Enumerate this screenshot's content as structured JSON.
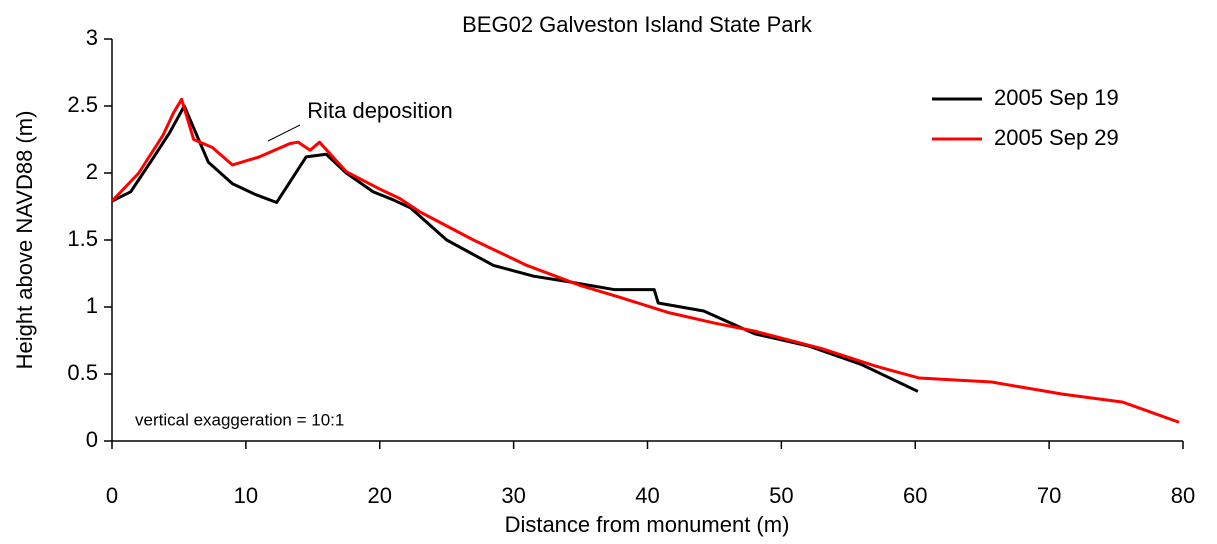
{
  "chart_data": {
    "type": "line",
    "title": "BEG02 Galveston Island State Park",
    "x_label": "Distance from monument (m)",
    "y_label": "Height above NAVD88 (m)",
    "annotations": [
      "Rita deposition",
      "vertical exaggeration = 10:1"
    ],
    "xlim": [
      0,
      80
    ],
    "xticks": [
      0,
      10,
      20,
      30,
      40,
      50,
      60,
      70,
      80
    ],
    "ylim": [
      0,
      3
    ],
    "yticks": [
      0,
      0.5,
      1,
      1.5,
      2,
      2.5,
      3
    ],
    "legend": "upper right",
    "series": [
      {
        "name": "2005 Sep 19",
        "color": "#000000",
        "x": [
          0,
          1.4,
          3,
          4.3,
          5.4,
          7.2,
          9,
          10.7,
          12.3,
          14.5,
          16,
          17.5,
          19.5,
          21,
          22.3,
          25,
          28.5,
          31.5,
          34,
          37.5,
          40.5,
          40.8,
          44.2,
          48,
          52,
          56,
          60.2
        ],
        "values": [
          1.79,
          1.86,
          2.1,
          2.3,
          2.5,
          2.08,
          1.92,
          1.84,
          1.78,
          2.12,
          2.14,
          2.0,
          1.86,
          1.8,
          1.74,
          1.5,
          1.31,
          1.23,
          1.19,
          1.13,
          1.13,
          1.03,
          0.97,
          0.8,
          0.71,
          0.57,
          0.37
        ]
      },
      {
        "name": "2005 Sep 29",
        "color": "#ff0000",
        "x": [
          0,
          2,
          3.8,
          4.6,
          5.2,
          6.1,
          7.5,
          9,
          11,
          13.3,
          13.9,
          14.8,
          15.5,
          17.5,
          20,
          21.5,
          23,
          27,
          31,
          35,
          38,
          41.5,
          45,
          48,
          53,
          57,
          60.3,
          65.7,
          71,
          75.5,
          79.7
        ],
        "values": [
          1.79,
          2.0,
          2.28,
          2.45,
          2.55,
          2.25,
          2.19,
          2.06,
          2.12,
          2.22,
          2.23,
          2.17,
          2.23,
          2.01,
          1.88,
          1.81,
          1.71,
          1.5,
          1.31,
          1.16,
          1.07,
          0.96,
          0.88,
          0.82,
          0.69,
          0.56,
          0.47,
          0.44,
          0.35,
          0.29,
          0.14
        ]
      }
    ]
  }
}
